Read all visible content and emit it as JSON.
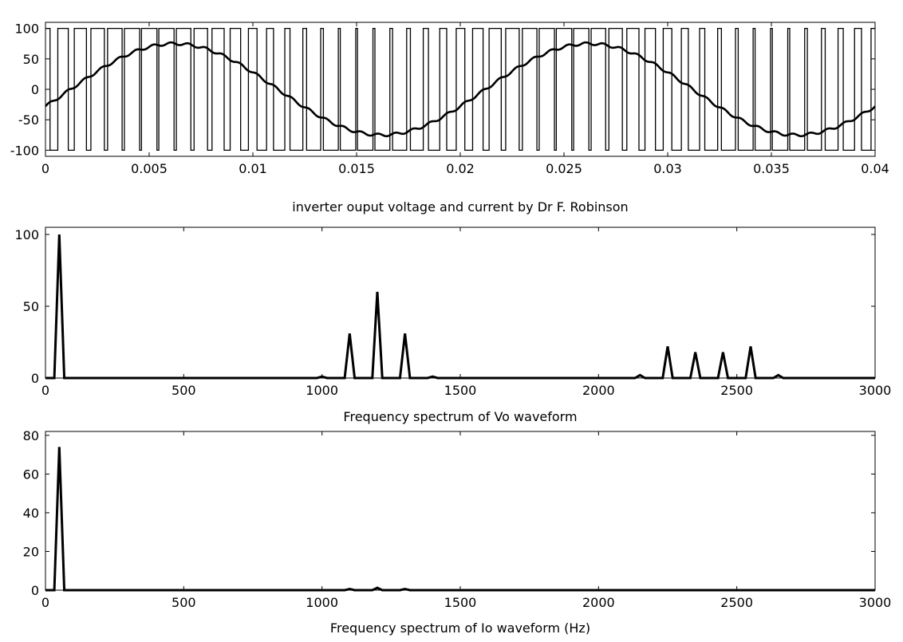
{
  "chart_data": [
    {
      "type": "line",
      "title": "",
      "xlabel": "inverter ouput voltage and current by Dr F. Robinson",
      "ylabel": "",
      "xlim": [
        0,
        0.04
      ],
      "ylim": [
        -110,
        110
      ],
      "xticks": [
        0,
        0.005,
        0.01,
        0.015,
        0.02,
        0.025,
        0.03,
        0.035,
        0.04
      ],
      "xtick_labels": [
        "0",
        "0.005",
        "0.01",
        "0.015",
        "0.02",
        "0.025",
        "0.03",
        "0.035",
        "0.04"
      ],
      "yticks": [
        -100,
        -50,
        0,
        50,
        100
      ],
      "ytick_labels": [
        "-100",
        "-50",
        "0",
        "50",
        "100"
      ],
      "grid": false,
      "series": [
        {
          "kind": "pwm-square-wave",
          "levels": [
            -100,
            100
          ],
          "carrier_frequency_hz": 1200,
          "fundamental_frequency_hz": 50,
          "modulation_index": 0.8,
          "color": "#000000"
        },
        {
          "kind": "sine-current",
          "amplitude": 75,
          "frequency_hz": 50,
          "phase_lag_rad": 0.38,
          "color": "#000000"
        }
      ]
    },
    {
      "type": "line",
      "title": "",
      "xlabel": "Frequency spectrum of Vo waveform",
      "ylabel": "",
      "xlim": [
        0,
        3000
      ],
      "ylim": [
        0,
        105
      ],
      "xticks": [
        0,
        500,
        1000,
        1500,
        2000,
        2500,
        3000
      ],
      "xtick_labels": [
        "0",
        "500",
        "1000",
        "1500",
        "2000",
        "2500",
        "3000"
      ],
      "yticks": [
        0,
        50,
        100
      ],
      "ytick_labels": [
        "0",
        "50",
        "100"
      ],
      "grid": false,
      "x": [
        0,
        50,
        1000,
        1100,
        1200,
        1300,
        1400,
        2150,
        2250,
        2350,
        2450,
        2550,
        2650,
        3000
      ],
      "values": [
        0,
        100,
        1,
        31,
        60,
        31,
        1,
        2,
        22,
        18,
        18,
        22,
        2,
        0
      ],
      "color": "#000000"
    },
    {
      "type": "line",
      "title": "",
      "xlabel": "Frequency spectrum of Io waveform (Hz)",
      "ylabel": "",
      "xlim": [
        0,
        3000
      ],
      "ylim": [
        0,
        82
      ],
      "xticks": [
        0,
        500,
        1000,
        1500,
        2000,
        2500,
        3000
      ],
      "xtick_labels": [
        "0",
        "500",
        "1000",
        "1500",
        "2000",
        "2500",
        "3000"
      ],
      "yticks": [
        0,
        20,
        40,
        60,
        80
      ],
      "ytick_labels": [
        "0",
        "20",
        "40",
        "60",
        "80"
      ],
      "grid": false,
      "x": [
        0,
        50,
        1100,
        1200,
        1300,
        3000
      ],
      "values": [
        0,
        74,
        0.6,
        1.2,
        0.6,
        0
      ],
      "color": "#000000"
    }
  ]
}
